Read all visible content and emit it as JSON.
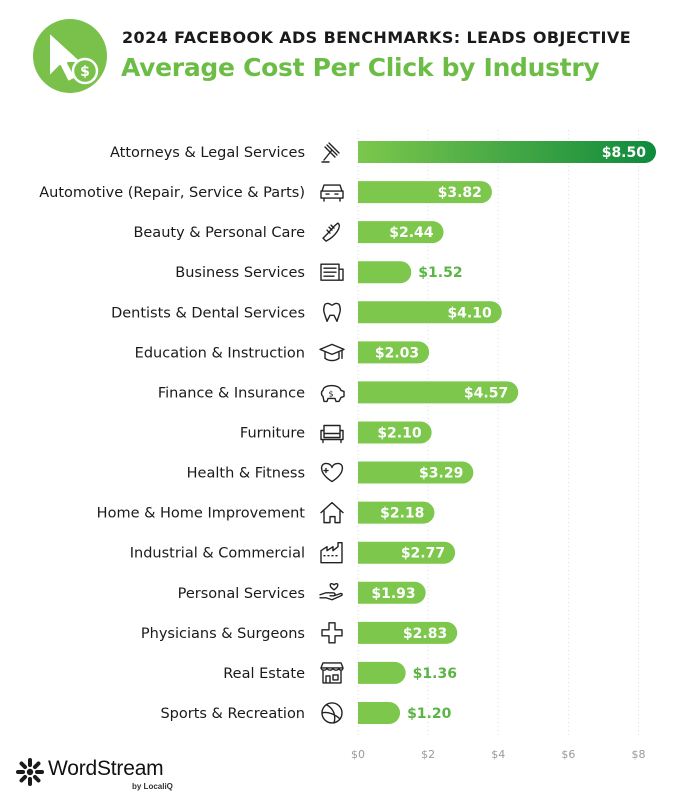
{
  "header": {
    "supertitle": "2024 FACEBOOK ADS BENCHMARKS: LEADS OBJECTIVE",
    "title": "Average Cost Per Click by Industry",
    "logo_icon": "cursor-dollar-icon"
  },
  "footer": {
    "brand": "WordStream",
    "byline": "by LocaliQ",
    "logo_icon": "wordstream-star-icon"
  },
  "colors": {
    "accent": "#6cbd45",
    "bar_light": "#7cc74c",
    "bar_dark": "#0f8a3d",
    "label_outside": "#5bb544",
    "axis_text": "#9a9a9a",
    "grid": "#d9d9d9"
  },
  "chart_data": {
    "type": "bar",
    "orientation": "horizontal",
    "categories": [
      "Attorneys & Legal Services",
      "Automotive (Repair, Service & Parts)",
      "Beauty & Personal Care",
      "Business Services",
      "Dentists & Dental Services",
      "Education & Instruction",
      "Finance & Insurance",
      "Furniture",
      "Health & Fitness",
      "Home & Home Improvement",
      "Industrial & Commercial",
      "Personal Services",
      "Physicians & Surgeons",
      "Real Estate",
      "Sports & Recreation"
    ],
    "icons": [
      "gavel-icon",
      "car-icon",
      "comb-icon",
      "newspaper-icon",
      "tooth-icon",
      "graduation-cap-icon",
      "piggy-bank-icon",
      "armchair-icon",
      "heart-icon",
      "house-icon",
      "factory-icon",
      "hand-heart-icon",
      "medical-cross-icon",
      "storefront-icon",
      "ball-icon"
    ],
    "values": [
      8.5,
      3.82,
      2.44,
      1.52,
      4.1,
      2.03,
      4.57,
      2.1,
      3.29,
      2.18,
      2.77,
      1.93,
      2.83,
      1.36,
      1.2
    ],
    "value_labels": [
      "$8.50",
      "$3.82",
      "$2.44",
      "$1.52",
      "$4.10",
      "$2.03",
      "$4.57",
      "$2.10",
      "$3.29",
      "$2.18",
      "$2.77",
      "$1.93",
      "$2.83",
      "$1.36",
      "$1.20"
    ],
    "xlim": [
      0,
      8.5
    ],
    "x_ticks": [
      0,
      2,
      4,
      6,
      8
    ],
    "x_tick_labels": [
      "$0",
      "$2",
      "$4",
      "$6",
      "$8"
    ],
    "grid": true,
    "legend": "none"
  }
}
